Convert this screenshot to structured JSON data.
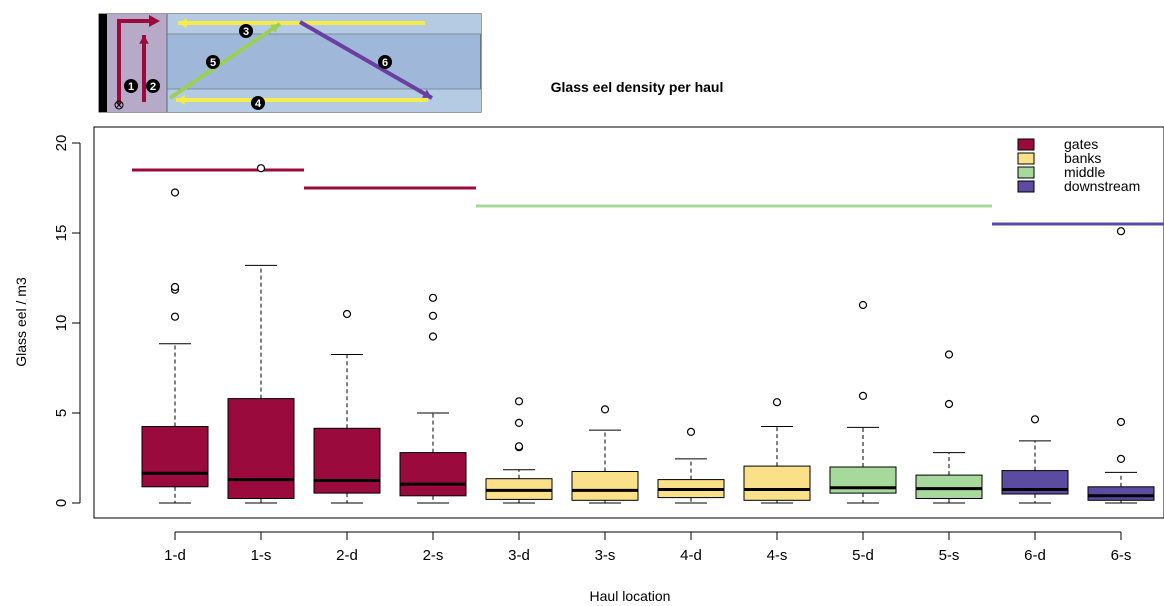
{
  "chart_data": {
    "type": "boxplot",
    "title": "Glass eel density per haul",
    "xlabel": "Haul location",
    "ylabel": "Glass eel / m3",
    "ylim": [
      0,
      20
    ],
    "yticks": [
      0,
      5,
      10,
      15,
      20
    ],
    "categories": [
      "1-d",
      "1-s",
      "2-d",
      "2-s",
      "3-d",
      "3-s",
      "4-d",
      "4-s",
      "5-d",
      "5-s",
      "6-d",
      "6-s"
    ],
    "groups": [
      "gates",
      "gates",
      "gates",
      "gates",
      "banks",
      "banks",
      "banks",
      "banks",
      "middle",
      "middle",
      "downstream",
      "downstream"
    ],
    "boxes": [
      {
        "min": 0.0,
        "q1": 0.9,
        "median": 1.65,
        "q3": 4.25,
        "max": 8.85,
        "outliers": [
          10.35,
          11.85,
          12.0,
          17.25
        ]
      },
      {
        "min": 0.0,
        "q1": 0.25,
        "median": 1.3,
        "q3": 5.8,
        "max": 13.2,
        "outliers": [
          18.6
        ]
      },
      {
        "min": 0.0,
        "q1": 0.55,
        "median": 1.25,
        "q3": 4.15,
        "max": 8.25,
        "outliers": [
          10.5
        ]
      },
      {
        "min": 0.0,
        "q1": 0.4,
        "median": 1.05,
        "q3": 2.8,
        "max": 5.0,
        "outliers": [
          9.25,
          10.4,
          11.4
        ]
      },
      {
        "min": 0.0,
        "q1": 0.2,
        "median": 0.7,
        "q3": 1.35,
        "max": 1.85,
        "outliers": [
          3.1,
          3.15,
          4.45,
          5.65
        ]
      },
      {
        "min": 0.0,
        "q1": 0.15,
        "median": 0.7,
        "q3": 1.75,
        "max": 4.05,
        "outliers": [
          5.2
        ]
      },
      {
        "min": 0.0,
        "q1": 0.3,
        "median": 0.75,
        "q3": 1.3,
        "max": 2.45,
        "outliers": [
          3.95
        ]
      },
      {
        "min": 0.0,
        "q1": 0.15,
        "median": 0.75,
        "q3": 2.05,
        "max": 4.25,
        "outliers": [
          5.6
        ]
      },
      {
        "min": 0.0,
        "q1": 0.55,
        "median": 0.85,
        "q3": 2.0,
        "max": 4.2,
        "outliers": [
          5.95,
          11.0
        ]
      },
      {
        "min": 0.0,
        "q1": 0.25,
        "median": 0.8,
        "q3": 1.55,
        "max": 2.8,
        "outliers": [
          5.5,
          8.25
        ]
      },
      {
        "min": 0.0,
        "q1": 0.5,
        "median": 0.75,
        "q3": 1.8,
        "max": 3.45,
        "outliers": [
          4.65
        ]
      },
      {
        "min": 0.0,
        "q1": 0.15,
        "median": 0.4,
        "q3": 0.9,
        "max": 1.7,
        "outliers": [
          2.45,
          4.5,
          15.1
        ]
      }
    ],
    "reference_lines": [
      {
        "group": "gates",
        "y": 18.5,
        "from_index": 0,
        "to_index": 1
      },
      {
        "group": "gates",
        "y": 17.5,
        "from_index": 2,
        "to_index": 3
      },
      {
        "group": "middle",
        "y": 16.5,
        "from_index": 4,
        "to_index": 9
      },
      {
        "group": "downstream",
        "y": 15.5,
        "from_index": 10,
        "to_index": 11
      }
    ],
    "legend": {
      "position": "top-right",
      "entries": [
        {
          "name": "gates",
          "color": "#9b0a3c"
        },
        {
          "name": "banks",
          "color": "#fbe08a"
        },
        {
          "name": "middle",
          "color": "#a6d99b"
        },
        {
          "name": "downstream",
          "color": "#5b4ba1"
        }
      ]
    },
    "group_colors": {
      "gates": "#9b0a3c",
      "banks": "#fbe08a",
      "middle": "#a6d99b",
      "downstream": "#5b4ba1"
    },
    "line_colors": {
      "gates": "#9b0a3c",
      "middle": "#a6d99b",
      "downstream": "#5b4ba1"
    },
    "grid": false
  },
  "inset_diagram": {
    "markers": [
      "1",
      "2",
      "3",
      "4",
      "5",
      "6"
    ],
    "sampler_icon": "circled-x-icon",
    "arrow_colors": {
      "gates": "#9b0a3c",
      "banks": "#f3ec4a",
      "middle": "#9bcf55",
      "downstream": "#6a3f9f"
    }
  }
}
